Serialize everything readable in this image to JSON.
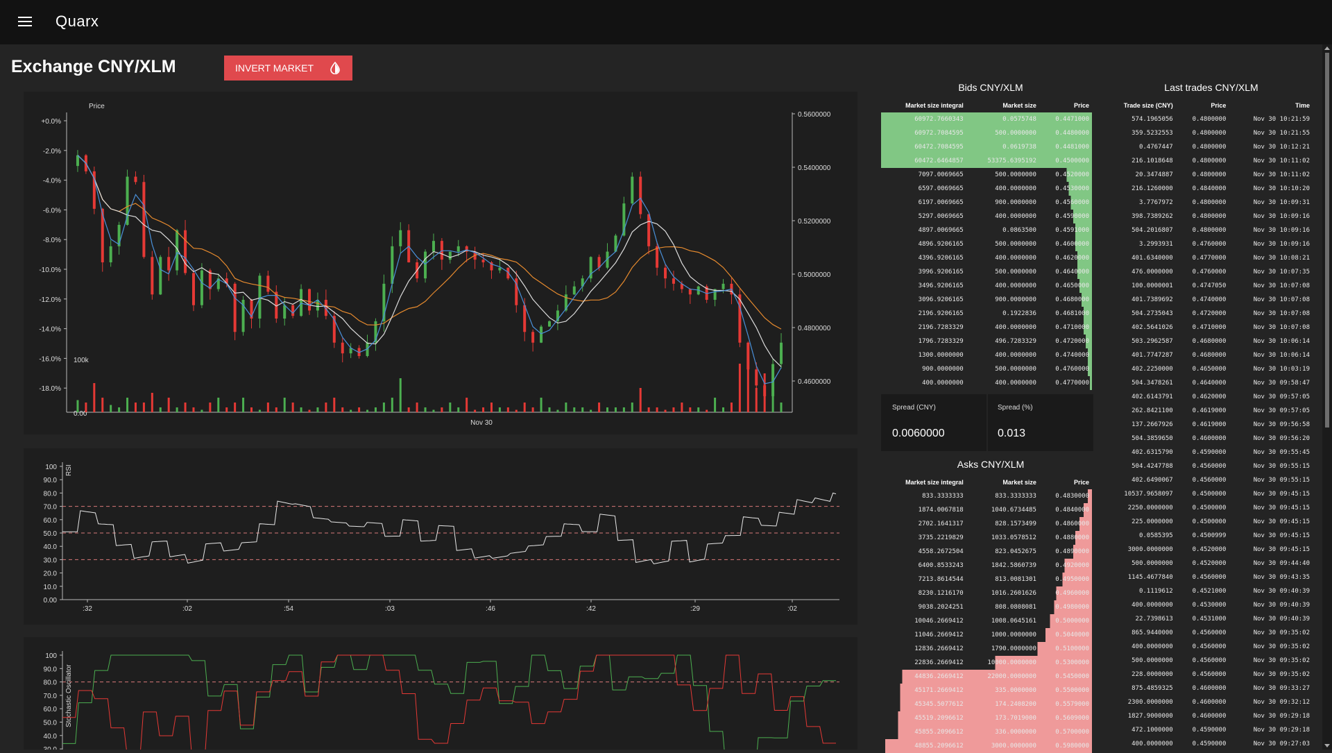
{
  "app": {
    "title": "Quarx"
  },
  "page": {
    "title": "Exchange CNY/XLM",
    "invert_label": "INVERT MARKET"
  },
  "icons": {
    "menu": "hamburger-menu-icon",
    "invert": "invert-colors-drop-icon"
  },
  "colors": {
    "accent": "#e0494d",
    "bid": "#81c784",
    "ask": "#ef9a9a",
    "up": "#4caf50",
    "down": "#e53935"
  },
  "chart_data": [
    {
      "type": "candlestick",
      "title": "Price",
      "left_ticks": [
        "+0.0%",
        "-2.0%",
        "-4.0%",
        "-6.0%",
        "-8.0%",
        "-10.0%",
        "-12.0%",
        "-14.0%",
        "-16.0%",
        "-18.0%"
      ],
      "right_ticks": [
        "0.5600000",
        "0.5400000",
        "0.5200000",
        "0.5000000",
        "0.4800000",
        "0.4600000"
      ],
      "volume_ticks": [
        "100k",
        "0.00"
      ],
      "x_ticks": [
        "Nov 30"
      ],
      "ylim": [
        0.452,
        0.564
      ],
      "close": [
        0.548,
        0.542,
        0.528,
        0.508,
        0.514,
        0.522,
        0.54,
        0.538,
        0.51,
        0.496,
        0.51,
        0.505,
        0.52,
        0.504,
        0.492,
        0.505,
        0.498,
        0.502,
        0.5,
        0.482,
        0.494,
        0.487,
        0.503,
        0.497,
        0.487,
        0.492,
        0.488,
        0.498,
        0.49,
        0.494,
        0.488,
        0.478,
        0.474,
        0.476,
        0.473,
        0.478,
        0.486,
        0.5,
        0.514,
        0.52,
        0.508,
        0.502,
        0.512,
        0.516,
        0.509,
        0.512,
        0.514,
        0.512,
        0.509,
        0.508,
        0.505,
        0.506,
        0.502,
        0.492,
        0.482,
        0.478,
        0.484,
        0.486,
        0.49,
        0.496,
        0.499,
        0.502,
        0.51,
        0.506,
        0.512,
        0.518,
        0.53,
        0.54,
        0.526,
        0.514,
        0.506,
        0.502,
        0.5,
        0.498,
        0.496,
        0.499,
        0.494,
        0.498,
        0.5,
        0.496,
        0.478,
        0.468,
        0.462,
        0.458,
        0.47,
        0.478
      ],
      "volume": [
        0.25,
        0.2,
        0.6,
        0.3,
        0.15,
        0.1,
        0.3,
        0.2,
        0.2,
        0.4,
        0.1,
        0.3,
        0.1,
        0.2,
        0.1,
        0.05,
        0.2,
        0.3,
        0.1,
        0.2,
        0.3,
        0.1,
        0.05,
        0.2,
        0.1,
        0.3,
        0.2,
        0.1,
        0.05,
        0.1,
        0.2,
        0.3,
        0.1,
        0.05,
        0.1,
        0.05,
        0.1,
        0.2,
        0.3,
        0.7,
        0.1,
        0.2,
        0.1,
        0.05,
        0.1,
        0.2,
        0.1,
        0.3,
        0.05,
        0.1,
        0.2,
        0.1,
        0.1,
        0.05,
        0.2,
        0.1,
        0.3,
        0.1,
        0.05,
        0.2,
        0.1,
        0.1,
        0.05,
        0.2,
        0.1,
        0.1,
        0.1,
        0.2,
        0.5,
        0.1,
        0.1,
        0.05,
        0.1,
        0.2,
        0.1,
        0.1,
        0.05,
        0.3,
        0.1,
        0.2,
        1.0,
        0.9,
        0.5,
        0.8,
        0.4,
        0.2
      ]
    },
    {
      "type": "line",
      "ylabel": "RSI",
      "y_ticks": [
        "100",
        "90.0",
        "80.0",
        "70.0",
        "60.0",
        "50.0",
        "40.0",
        "30.0",
        "20.0",
        "10.0",
        "0.00"
      ],
      "x_ticks": [
        ":32",
        ":02",
        ":54",
        ":03",
        ":46",
        ":42",
        ":29",
        ":02"
      ],
      "ylim": [
        0,
        100
      ],
      "reference_lines": [
        70,
        50,
        30
      ]
    },
    {
      "type": "line",
      "ylabel": "Stochastic Oscillator",
      "y_ticks": [
        "100",
        "90.0",
        "80.0",
        "70.0",
        "60.0",
        "50.0",
        "40.0",
        "30.0"
      ],
      "ylim": [
        30,
        100
      ],
      "reference_lines": [
        80
      ],
      "series": [
        {
          "color": "#4caf50"
        },
        {
          "color": "#e53935"
        }
      ]
    }
  ],
  "bids": {
    "title": "Bids CNY/XLM",
    "headers": [
      "Market size integral",
      "Market size",
      "Price"
    ],
    "rows": [
      {
        "integral": "60972.7660343",
        "size": "0.0575748",
        "price": "0.4471000",
        "depth": 1.0
      },
      {
        "integral": "60972.7084595",
        "size": "500.0000000",
        "price": "0.4480000",
        "depth": 1.0
      },
      {
        "integral": "60472.7084595",
        "size": "0.0619738",
        "price": "0.4481000",
        "depth": 1.0
      },
      {
        "integral": "60472.6464857",
        "size": "53375.6395192",
        "price": "0.4500000",
        "depth": 1.0
      },
      {
        "integral": "7097.0069665",
        "size": "500.0000000",
        "price": "0.4520000",
        "depth": 0.12
      },
      {
        "integral": "6597.0069665",
        "size": "400.0000000",
        "price": "0.4530000",
        "depth": 0.11
      },
      {
        "integral": "6197.0069665",
        "size": "900.0000000",
        "price": "0.4560000",
        "depth": 0.1
      },
      {
        "integral": "5297.0069665",
        "size": "400.0000000",
        "price": "0.4590000",
        "depth": 0.09
      },
      {
        "integral": "4897.0069665",
        "size": "0.0863500",
        "price": "0.4591000",
        "depth": 0.08
      },
      {
        "integral": "4896.9206165",
        "size": "500.0000000",
        "price": "0.4600000",
        "depth": 0.08
      },
      {
        "integral": "4396.9206165",
        "size": "400.0000000",
        "price": "0.4620000",
        "depth": 0.07
      },
      {
        "integral": "3996.9206165",
        "size": "500.0000000",
        "price": "0.4640000",
        "depth": 0.07
      },
      {
        "integral": "3496.9206165",
        "size": "400.0000000",
        "price": "0.4650000",
        "depth": 0.06
      },
      {
        "integral": "3096.9206165",
        "size": "900.0000000",
        "price": "0.4680000",
        "depth": 0.05
      },
      {
        "integral": "2196.9206165",
        "size": "0.1922836",
        "price": "0.4681000",
        "depth": 0.04
      },
      {
        "integral": "2196.7283329",
        "size": "400.0000000",
        "price": "0.4710000",
        "depth": 0.04
      },
      {
        "integral": "1796.7283329",
        "size": "496.7283329",
        "price": "0.4720000",
        "depth": 0.03
      },
      {
        "integral": "1300.0000000",
        "size": "400.0000000",
        "price": "0.4740000",
        "depth": 0.02
      },
      {
        "integral": "900.0000000",
        "size": "500.0000000",
        "price": "0.4760000",
        "depth": 0.015
      },
      {
        "integral": "400.0000000",
        "size": "400.0000000",
        "price": "0.4770000",
        "depth": 0.007
      }
    ]
  },
  "spread": {
    "cny_label": "Spread (CNY)",
    "cny_value": "0.0060000",
    "pct_label": "Spread (%)",
    "pct_value": "0.013"
  },
  "asks": {
    "title": "Asks CNY/XLM",
    "headers": [
      "Market size integral",
      "Market size",
      "Price"
    ],
    "rows": [
      {
        "integral": "833.3333333",
        "size": "833.3333333",
        "price": "0.4830000",
        "depth": 0.017
      },
      {
        "integral": "1874.0067818",
        "size": "1040.6734485",
        "price": "0.4840000",
        "depth": 0.04
      },
      {
        "integral": "2702.1641317",
        "size": "828.1573499",
        "price": "0.4860000",
        "depth": 0.055
      },
      {
        "integral": "3735.2219829",
        "size": "1033.0578512",
        "price": "0.4880000",
        "depth": 0.075
      },
      {
        "integral": "4558.2672504",
        "size": "823.0452675",
        "price": "0.4890000",
        "depth": 0.09
      },
      {
        "integral": "6400.8533243",
        "size": "1842.5860739",
        "price": "0.4920000",
        "depth": 0.13
      },
      {
        "integral": "7213.8614544",
        "size": "813.0081301",
        "price": "0.4950000",
        "depth": 0.145
      },
      {
        "integral": "8230.1216170",
        "size": "1016.2601626",
        "price": "0.4960000",
        "depth": 0.165
      },
      {
        "integral": "9038.2024251",
        "size": "808.0808081",
        "price": "0.4980000",
        "depth": 0.18
      },
      {
        "integral": "10046.2669412",
        "size": "1008.0645161",
        "price": "0.5000000",
        "depth": 0.2
      },
      {
        "integral": "11046.2669412",
        "size": "1000.0000000",
        "price": "0.5040000",
        "depth": 0.22
      },
      {
        "integral": "12836.2669412",
        "size": "1790.0000000",
        "price": "0.5100000",
        "depth": 0.26
      },
      {
        "integral": "22836.2669412",
        "size": "10000.0000000",
        "price": "0.5300000",
        "depth": 0.46
      },
      {
        "integral": "44836.2669412",
        "size": "22000.0000000",
        "price": "0.5450000",
        "depth": 0.9
      },
      {
        "integral": "45171.2669412",
        "size": "335.0000000",
        "price": "0.5500000",
        "depth": 0.91
      },
      {
        "integral": "45345.5077612",
        "size": "174.2408200",
        "price": "0.5579000",
        "depth": 0.91
      },
      {
        "integral": "45519.2096612",
        "size": "173.7019000",
        "price": "0.5609000",
        "depth": 0.92
      },
      {
        "integral": "45855.2096612",
        "size": "336.0000000",
        "price": "0.5700000",
        "depth": 0.92
      },
      {
        "integral": "48855.2096612",
        "size": "3000.0000000",
        "price": "0.5980000",
        "depth": 0.98
      }
    ]
  },
  "trades": {
    "title": "Last trades CNY/XLM",
    "headers": [
      "Trade size (CNY)",
      "Price",
      "Time"
    ],
    "rows": [
      {
        "size": "574.1965056",
        "price": "0.4800000",
        "time": "Nov 30 10:21:59",
        "side": "buy"
      },
      {
        "size": "359.5232553",
        "price": "0.4800000",
        "time": "Nov 30 10:21:55",
        "side": "buy"
      },
      {
        "size": "0.4767447",
        "price": "0.4800000",
        "time": "Nov 30 10:12:21",
        "side": "buy"
      },
      {
        "size": "216.1018648",
        "price": "0.4800000",
        "time": "Nov 30 10:11:02",
        "side": "buy"
      },
      {
        "size": "20.3474887",
        "price": "0.4800000",
        "time": "Nov 30 10:11:02",
        "side": "sell"
      },
      {
        "size": "216.1260000",
        "price": "0.4840000",
        "time": "Nov 30 10:10:20",
        "side": "buy"
      },
      {
        "size": "3.7767972",
        "price": "0.4800000",
        "time": "Nov 30 10:09:31",
        "side": "buy"
      },
      {
        "size": "398.7389262",
        "price": "0.4800000",
        "time": "Nov 30 10:09:16",
        "side": "buy"
      },
      {
        "size": "504.2016807",
        "price": "0.4800000",
        "time": "Nov 30 10:09:16",
        "side": "buy"
      },
      {
        "size": "3.2993931",
        "price": "0.4760000",
        "time": "Nov 30 10:09:16",
        "side": "sell"
      },
      {
        "size": "401.6340000",
        "price": "0.4770000",
        "time": "Nov 30 10:08:21",
        "side": "buy"
      },
      {
        "size": "476.0000000",
        "price": "0.4760000",
        "time": "Nov 30 10:07:35",
        "side": "buy"
      },
      {
        "size": "100.0000001",
        "price": "0.4747050",
        "time": "Nov 30 10:07:08",
        "side": "buy"
      },
      {
        "size": "401.7389692",
        "price": "0.4740000",
        "time": "Nov 30 10:07:08",
        "side": "buy"
      },
      {
        "size": "504.2735043",
        "price": "0.4720000",
        "time": "Nov 30 10:07:08",
        "side": "buy"
      },
      {
        "size": "402.5641026",
        "price": "0.4710000",
        "time": "Nov 30 10:07:08",
        "side": "buy"
      },
      {
        "size": "503.2962587",
        "price": "0.4680000",
        "time": "Nov 30 10:06:14",
        "side": "buy"
      },
      {
        "size": "401.7747287",
        "price": "0.4680000",
        "time": "Nov 30 10:06:14",
        "side": "buy"
      },
      {
        "size": "402.2250000",
        "price": "0.4650000",
        "time": "Nov 30 10:03:19",
        "side": "buy"
      },
      {
        "size": "504.3478261",
        "price": "0.4640000",
        "time": "Nov 30 09:58:47",
        "side": "buy"
      },
      {
        "size": "402.6143791",
        "price": "0.4620000",
        "time": "Nov 30 09:57:05",
        "side": "buy"
      },
      {
        "size": "262.8421100",
        "price": "0.4619000",
        "time": "Nov 30 09:57:05",
        "side": "buy"
      },
      {
        "size": "137.2667926",
        "price": "0.4619000",
        "time": "Nov 30 09:56:58",
        "side": "buy"
      },
      {
        "size": "504.3859650",
        "price": "0.4600000",
        "time": "Nov 30 09:56:20",
        "side": "buy"
      },
      {
        "size": "402.6315790",
        "price": "0.4590000",
        "time": "Nov 30 09:55:45",
        "side": "buy"
      },
      {
        "size": "504.4247788",
        "price": "0.4560000",
        "time": "Nov 30 09:55:15",
        "side": "buy"
      },
      {
        "size": "402.6490067",
        "price": "0.4560000",
        "time": "Nov 30 09:55:15",
        "side": "buy"
      },
      {
        "size": "10537.9658097",
        "price": "0.4500000",
        "time": "Nov 30 09:45:15",
        "side": "buy"
      },
      {
        "size": "2250.0000000",
        "price": "0.4500000",
        "time": "Nov 30 09:45:15",
        "side": "buy"
      },
      {
        "size": "225.0000000",
        "price": "0.4500000",
        "time": "Nov 30 09:45:15",
        "side": "sell"
      },
      {
        "size": "0.0585395",
        "price": "0.4500999",
        "time": "Nov 30 09:45:15",
        "side": "sell"
      },
      {
        "size": "3000.0000000",
        "price": "0.4520000",
        "time": "Nov 30 09:45:15",
        "side": "buy"
      },
      {
        "size": "500.0000000",
        "price": "0.4520000",
        "time": "Nov 30 09:44:40",
        "side": "sell"
      },
      {
        "size": "1145.4677840",
        "price": "0.4560000",
        "time": "Nov 30 09:43:35",
        "side": "buy"
      },
      {
        "size": "0.1119612",
        "price": "0.4521000",
        "time": "Nov 30 09:40:39",
        "side": "sell"
      },
      {
        "size": "400.0000000",
        "price": "0.4530000",
        "time": "Nov 30 09:40:39",
        "side": "sell"
      },
      {
        "size": "22.7398613",
        "price": "0.4531000",
        "time": "Nov 30 09:40:39",
        "side": "sell"
      },
      {
        "size": "865.9440000",
        "price": "0.4560000",
        "time": "Nov 30 09:35:02",
        "side": "buy"
      },
      {
        "size": "400.0000000",
        "price": "0.4560000",
        "time": "Nov 30 09:35:02",
        "side": "buy"
      },
      {
        "size": "500.0000000",
        "price": "0.4560000",
        "time": "Nov 30 09:35:02",
        "side": "buy"
      },
      {
        "size": "228.0000000",
        "price": "0.4560000",
        "time": "Nov 30 09:35:02",
        "side": "sell"
      },
      {
        "size": "875.4859325",
        "price": "0.4600000",
        "time": "Nov 30 09:33:27",
        "side": "buy"
      },
      {
        "size": "2300.0000000",
        "price": "0.4600000",
        "time": "Nov 30 09:32:12",
        "side": "buy"
      },
      {
        "size": "1827.9000000",
        "price": "0.4600000",
        "time": "Nov 30 09:29:18",
        "side": "buy"
      },
      {
        "size": "472.1000000",
        "price": "0.4590000",
        "time": "Nov 30 09:29:18",
        "side": "buy"
      },
      {
        "size": "400.0000000",
        "price": "0.4590000",
        "time": "Nov 30 09:27:03",
        "side": "sell"
      }
    ]
  }
}
